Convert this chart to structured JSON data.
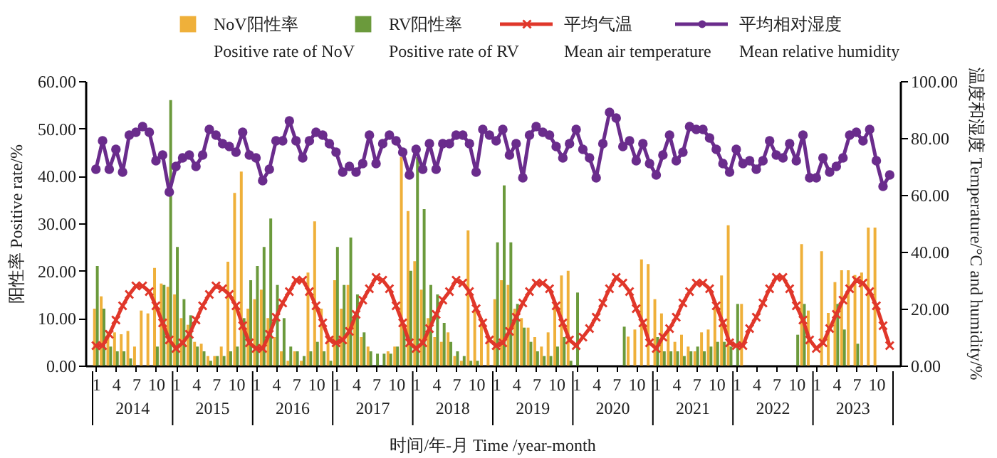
{
  "chart_data": {
    "type": "bar",
    "xlabel": "时间/年-月 Time /year-month",
    "ylabel": "阳性率 Positive rate/%",
    "y2label": "温度和湿度 Temperature/°C and humidity/%",
    "categories": [
      "1",
      null,
      null,
      "4",
      null,
      null,
      "7",
      null,
      null,
      "10",
      null,
      null,
      "1",
      null,
      null,
      "4",
      null,
      null,
      "7",
      null,
      null,
      "10",
      null,
      null,
      "1",
      null,
      null,
      "4",
      null,
      null,
      "7",
      null,
      null,
      "10",
      null,
      null,
      "1",
      null,
      null,
      "4",
      null,
      null,
      "7",
      null,
      null,
      "10",
      null,
      null,
      "1",
      null,
      null,
      "4",
      null,
      null,
      "7",
      null,
      null,
      "10",
      null,
      null,
      "1",
      null,
      null,
      "4",
      null,
      null,
      "7",
      null,
      null,
      "10",
      null,
      null,
      "1",
      null,
      null,
      "4",
      null,
      null,
      "7",
      null,
      null,
      "10",
      null,
      null,
      "1",
      null,
      null,
      "4",
      null,
      null,
      "7",
      null,
      null,
      "10",
      null,
      null,
      "1",
      null,
      null,
      "4",
      null,
      null,
      "7",
      null,
      null,
      "10",
      null,
      null,
      "1",
      null,
      null,
      "4",
      null,
      null,
      "7",
      null,
      null,
      "10",
      null,
      null
    ],
    "annotations": [
      "2014",
      "2015",
      "2016",
      "2017",
      "2018",
      "2019",
      "2020",
      "2021",
      "2022",
      "2023"
    ],
    "series": [
      {
        "name": "NoV阳性率\nPositive rate of NoV",
        "color": "#efb03a",
        "values": [
          12,
          14.6,
          7,
          7,
          6.6,
          7.3,
          4,
          11.6,
          11,
          20.6,
          17.3,
          16.6,
          15,
          10,
          8.6,
          5,
          4.6,
          2,
          2,
          4,
          21.9,
          36.4,
          40.9,
          12,
          14,
          16,
          10,
          6,
          3,
          1,
          3,
          1,
          19.6,
          30.4,
          12,
          6,
          18,
          12,
          17,
          10,
          6,
          4,
          0,
          0,
          3,
          4,
          44,
          32.6,
          22,
          16,
          10,
          6,
          5,
          7,
          2,
          1,
          28.5,
          12,
          10,
          6,
          14,
          18,
          17,
          12,
          10,
          8,
          6,
          4,
          7,
          13,
          19,
          20,
          0,
          0,
          0,
          0,
          0,
          0,
          0,
          0,
          6.1,
          7.6,
          22.4,
          21.4,
          14,
          11,
          8,
          5,
          6.5,
          4,
          3,
          7,
          7.6,
          12,
          19,
          29.6,
          0,
          13,
          0,
          0,
          0,
          0,
          0,
          0,
          0,
          0,
          25.6,
          11.6,
          0,
          24.1,
          11.1,
          17.6,
          20.1,
          20.1,
          19.1,
          19.6,
          29.1,
          29.1,
          0,
          0
        ]
      },
      {
        "name": "RV阳性率\nPositive rate of RV",
        "color": "#6b9a3c",
        "values": [
          21,
          12,
          4,
          3,
          3,
          1.5,
          0,
          0,
          0,
          4,
          17,
          56,
          25,
          14,
          10.6,
          4,
          3,
          1,
          2,
          2,
          3,
          4,
          10,
          18,
          21,
          25,
          31,
          17,
          10,
          4,
          3,
          2,
          3,
          5,
          3,
          1,
          25,
          17,
          27,
          15,
          7,
          3,
          2.5,
          2.5,
          2.5,
          4,
          8,
          20,
          44,
          33,
          17,
          15,
          9,
          5,
          3,
          2,
          1,
          1,
          0,
          0,
          26,
          38,
          26,
          13,
          8,
          5,
          3,
          2,
          2,
          4,
          6,
          1,
          15.4,
          0,
          0,
          0,
          0,
          0,
          0,
          8.2,
          0,
          0,
          0,
          0,
          6,
          3,
          3,
          3,
          2,
          3,
          4,
          3,
          4,
          5,
          5,
          4,
          13,
          0,
          0,
          0,
          0,
          0,
          0,
          0,
          0,
          6.5,
          13,
          0,
          0,
          0,
          0,
          13,
          7.6,
          0,
          4.6,
          0,
          0,
          0,
          0,
          0
        ]
      },
      {
        "name": "平均气温\nMean air temperature",
        "color": "#e0372a",
        "type": "line",
        "axis": "y2",
        "marker": "cross",
        "values": [
          7,
          7,
          11,
          16,
          21,
          25,
          28,
          28,
          26,
          21,
          15,
          9,
          6,
          8,
          11,
          16,
          21,
          25,
          28,
          27,
          25,
          21,
          14,
          8,
          6,
          6,
          11,
          17,
          22,
          26,
          30,
          30,
          26,
          21,
          15,
          9,
          8,
          9,
          12,
          18,
          23,
          27,
          31,
          30,
          27,
          21,
          15,
          8,
          6,
          8,
          13,
          18,
          23,
          26,
          30,
          29,
          26,
          20,
          15,
          9,
          7,
          8,
          12,
          17,
          22,
          26,
          29,
          29,
          27,
          21,
          15,
          9,
          7,
          10,
          13,
          17,
          22,
          27,
          31,
          29,
          26,
          20,
          15,
          8,
          6,
          10,
          13,
          17,
          22,
          26,
          29,
          29,
          27,
          21,
          15,
          8,
          7,
          7,
          13,
          17,
          22,
          27,
          31,
          31,
          27,
          21,
          16,
          9,
          6,
          8,
          13,
          18,
          23,
          27,
          30,
          29,
          26,
          21,
          14,
          7
        ]
      },
      {
        "name": "平均相对湿度\nMean relative humidity",
        "color": "#6a2c8c",
        "type": "line",
        "axis": "y2",
        "marker": "circle",
        "values": [
          69,
          79,
          69,
          76,
          68,
          81,
          82,
          84,
          82,
          72,
          74,
          61,
          70,
          73,
          74,
          70,
          74,
          83,
          81,
          78,
          77,
          75,
          82,
          74,
          73,
          65,
          69,
          79,
          79,
          86,
          79,
          73,
          79,
          82,
          81,
          78,
          75,
          68,
          70,
          68,
          71,
          81,
          71,
          78,
          81,
          79,
          75,
          67,
          76,
          69,
          78,
          69,
          78,
          78,
          81,
          81,
          78,
          68,
          83,
          81,
          79,
          83,
          74,
          78,
          66,
          81,
          84,
          82,
          81,
          77,
          73,
          78,
          83,
          76,
          73,
          66,
          78,
          89,
          87,
          77,
          79,
          72,
          78,
          71,
          67,
          74,
          81,
          72,
          75,
          84,
          83,
          83,
          80,
          76,
          71,
          68,
          76,
          71,
          72,
          69,
          72,
          79,
          74,
          73,
          78,
          72,
          81,
          66,
          66,
          73,
          68,
          70,
          73,
          81,
          82,
          79,
          83,
          72,
          63,
          67
        ]
      }
    ],
    "ylim": [
      0,
      60
    ],
    "yticks": [
      {
        "value": 0,
        "label": "0.00"
      },
      {
        "value": 10,
        "label": "10.00"
      },
      {
        "value": 20,
        "label": "20.00"
      },
      {
        "value": 30,
        "label": "30.00"
      },
      {
        "value": 40,
        "label": "40.00"
      },
      {
        "value": 50,
        "label": "50.00"
      },
      {
        "value": 60,
        "label": "60.00"
      }
    ],
    "y2lim": [
      0,
      100
    ],
    "y2ticks": [
      {
        "value": 0,
        "label": "0.00"
      },
      {
        "value": 20,
        "label": "20.00"
      },
      {
        "value": 40,
        "label": "40.00"
      },
      {
        "value": 60,
        "label": "60.00"
      },
      {
        "value": 80,
        "label": "80.00"
      },
      {
        "value": 100,
        "label": "100.00"
      }
    ],
    "grid": false,
    "legend": "top",
    "line_style": "solid"
  }
}
